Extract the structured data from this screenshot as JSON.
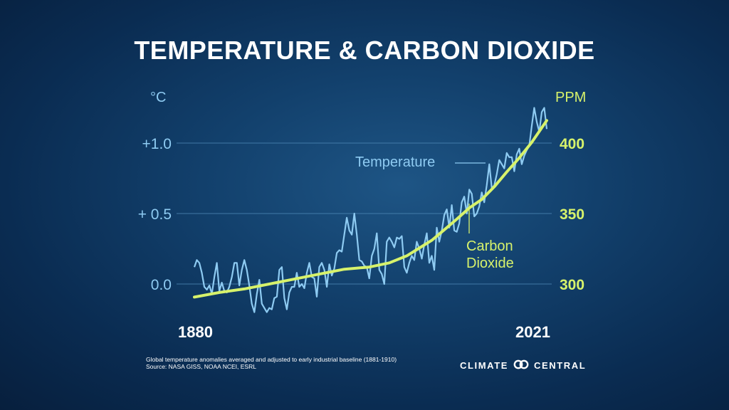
{
  "title": "TEMPERATURE & CARBON DIOXIDE",
  "note_line1": "Global temperature anomalies averaged and adjusted to early industrial baseline (1881-1910)",
  "note_line2": "Source: NASA GISS, NOAA NCEI, ESRL",
  "brand": {
    "left": "CLIMATE",
    "right": "CENTRAL",
    "logo_icon": "linked-rings-icon"
  },
  "colors": {
    "temperature": "#8ecbf2",
    "carbon_dioxide": "#d7f26b",
    "grid": "#4d87b5"
  },
  "chart_data": {
    "type": "line",
    "title": "TEMPERATURE & CARBON DIOXIDE",
    "x_tick_labels": [
      "1880",
      "2021"
    ],
    "xlim": [
      1880,
      2021
    ],
    "left_axis": {
      "unit": "°C",
      "ticks": [
        "0.0",
        "+ 0.5",
        "+1.0"
      ],
      "tick_values": [
        0,
        0.5,
        1.0
      ],
      "ylim": [
        -0.25,
        1.3
      ]
    },
    "right_axis": {
      "unit": "PPM",
      "ticks": [
        "300",
        "350",
        "400"
      ],
      "tick_values": [
        300,
        350,
        400
      ],
      "ylim": [
        275,
        430
      ]
    },
    "grid": true,
    "series": [
      {
        "name": "Temperature",
        "axis": "left",
        "x": [
          1880,
          1881,
          1882,
          1883,
          1884,
          1885,
          1886,
          1887,
          1888,
          1889,
          1890,
          1891,
          1892,
          1893,
          1894,
          1895,
          1896,
          1897,
          1898,
          1899,
          1900,
          1901,
          1902,
          1903,
          1904,
          1905,
          1906,
          1907,
          1908,
          1909,
          1910,
          1911,
          1912,
          1913,
          1914,
          1915,
          1916,
          1917,
          1918,
          1919,
          1920,
          1921,
          1922,
          1923,
          1924,
          1925,
          1926,
          1927,
          1928,
          1929,
          1930,
          1931,
          1932,
          1933,
          1934,
          1935,
          1936,
          1937,
          1938,
          1939,
          1940,
          1941,
          1942,
          1943,
          1944,
          1945,
          1946,
          1947,
          1948,
          1949,
          1950,
          1951,
          1952,
          1953,
          1954,
          1955,
          1956,
          1957,
          1958,
          1959,
          1960,
          1961,
          1962,
          1963,
          1964,
          1965,
          1966,
          1967,
          1968,
          1969,
          1970,
          1971,
          1972,
          1973,
          1974,
          1975,
          1976,
          1977,
          1978,
          1979,
          1980,
          1981,
          1982,
          1983,
          1984,
          1985,
          1986,
          1987,
          1988,
          1989,
          1990,
          1991,
          1992,
          1993,
          1994,
          1995,
          1996,
          1997,
          1998,
          1999,
          2000,
          2001,
          2002,
          2003,
          2004,
          2005,
          2006,
          2007,
          2008,
          2009,
          2010,
          2011,
          2012,
          2013,
          2014,
          2015,
          2016,
          2017,
          2018,
          2019,
          2020,
          2021
        ],
        "values": [
          0.12,
          0.17,
          0.15,
          0.08,
          -0.02,
          -0.04,
          -0.01,
          -0.07,
          0.05,
          0.15,
          -0.05,
          0.01,
          -0.05,
          -0.06,
          -0.02,
          0.05,
          0.15,
          0.15,
          -0.01,
          0.1,
          0.17,
          0.1,
          -0.01,
          -0.14,
          -0.2,
          -0.07,
          0.03,
          -0.14,
          -0.17,
          -0.2,
          -0.17,
          -0.18,
          -0.1,
          -0.09,
          0.1,
          0.12,
          -0.1,
          -0.18,
          -0.06,
          -0.02,
          -0.02,
          0.08,
          -0.02,
          0.0,
          -0.03,
          0.08,
          0.15,
          0.05,
          0.04,
          -0.09,
          0.12,
          0.15,
          0.1,
          -0.02,
          0.14,
          0.06,
          0.11,
          0.22,
          0.24,
          0.23,
          0.35,
          0.47,
          0.38,
          0.35,
          0.5,
          0.35,
          0.17,
          0.16,
          0.13,
          0.12,
          0.04,
          0.2,
          0.25,
          0.36,
          0.1,
          0.07,
          0.0,
          0.3,
          0.33,
          0.3,
          0.26,
          0.33,
          0.32,
          0.34,
          0.12,
          0.08,
          0.15,
          0.2,
          0.17,
          0.3,
          0.25,
          0.18,
          0.28,
          0.36,
          0.15,
          0.2,
          0.1,
          0.4,
          0.3,
          0.38,
          0.49,
          0.53,
          0.4,
          0.56,
          0.38,
          0.37,
          0.43,
          0.58,
          0.62,
          0.5,
          0.67,
          0.64,
          0.48,
          0.5,
          0.55,
          0.65,
          0.58,
          0.7,
          0.85,
          0.68,
          0.7,
          0.78,
          0.88,
          0.85,
          0.82,
          0.93,
          0.9,
          0.9,
          0.8,
          0.92,
          0.96,
          0.85,
          0.91,
          0.95,
          0.98,
          1.12,
          1.25,
          1.15,
          1.08,
          1.22,
          1.25,
          1.1
        ]
      },
      {
        "name": "Carbon Dioxide",
        "axis": "right",
        "x": [
          1880,
          1890,
          1900,
          1910,
          1920,
          1930,
          1940,
          1950,
          1958,
          1965,
          1970,
          1975,
          1980,
          1985,
          1990,
          1995,
          2000,
          2005,
          2010,
          2015,
          2021
        ],
        "values": [
          290.7,
          294,
          296.5,
          300,
          303.5,
          307,
          310.5,
          312,
          315,
          320,
          325.5,
          331,
          338.5,
          346,
          354,
          360,
          369,
          379.5,
          389.5,
          400.5,
          416
        ]
      }
    ],
    "annotations": [
      "Temperature",
      "Carbon",
      "Dioxide"
    ]
  }
}
